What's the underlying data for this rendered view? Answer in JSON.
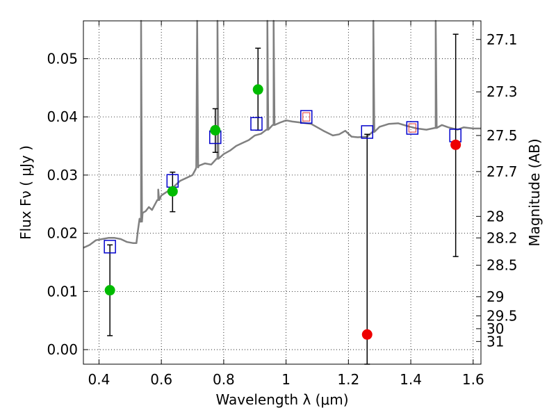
{
  "chart_data": {
    "type": "scatter",
    "title": "",
    "xlabel": "Wavelength  λ (μm)",
    "ylabel": "Flux  Fν  ( μJy )",
    "y2label": "Magnitude (AB)",
    "xlim": [
      0.35,
      1.625
    ],
    "ylim": [
      -0.0025,
      0.0565
    ],
    "grid": true,
    "x_ticks": [
      0.4,
      0.6,
      0.8,
      1.0,
      1.2,
      1.4,
      1.6
    ],
    "x_tick_labels": [
      "0.4",
      "0.6",
      "0.8",
      "1",
      "1.2",
      "1.4",
      "1.6"
    ],
    "y_ticks": [
      0.0,
      0.01,
      0.02,
      0.03,
      0.04,
      0.05
    ],
    "y_tick_labels": [
      "0.00",
      "0.01",
      "0.02",
      "0.03",
      "0.04",
      "0.05"
    ],
    "y2_ticks": [
      {
        "flux": 0.0533,
        "label": "27.1"
      },
      {
        "flux": 0.0443,
        "label": "27.3"
      },
      {
        "flux": 0.0368,
        "label": "27.5"
      },
      {
        "flux": 0.0306,
        "label": "27.7"
      },
      {
        "flux": 0.0229,
        "label": "28"
      },
      {
        "flux": 0.0192,
        "label": "28.2"
      },
      {
        "flux": 0.0145,
        "label": "28.5"
      },
      {
        "flux": 0.0091,
        "label": "29"
      },
      {
        "flux": 0.0058,
        "label": "29.5"
      },
      {
        "flux": 0.0036,
        "label": "30"
      },
      {
        "flux": 0.0014,
        "label": "31"
      }
    ],
    "detections": {
      "color": "#00bb00",
      "x": [
        0.435,
        0.636,
        0.773,
        0.91
      ],
      "y": [
        0.0102,
        0.0272,
        0.0377,
        0.0447
      ],
      "yerr_low": [
        0.0024,
        0.0237,
        0.0339,
        0.0377
      ],
      "yerr_high": [
        0.018,
        0.0305,
        0.0414,
        0.0518
      ]
    },
    "non_detections": {
      "color": "#ee0000",
      "x": [
        1.26,
        1.544
      ],
      "y": [
        0.0026,
        0.0352
      ],
      "yerr_low": [
        -0.0025,
        0.016
      ],
      "yerr_high": [
        0.037,
        0.0542
      ]
    },
    "model_boxes": {
      "color": "#0000cc",
      "x": [
        0.435,
        0.636,
        0.773,
        0.905,
        1.065,
        1.26,
        1.405,
        1.543
      ],
      "y": [
        0.0177,
        0.029,
        0.0365,
        0.0388,
        0.04,
        0.0374,
        0.0381,
        0.0368
      ]
    },
    "model_boxes_red_outline": {
      "color": "#dd3333",
      "x": [
        1.065,
        1.405
      ],
      "y": [
        0.04,
        0.0381
      ]
    },
    "sed_model": {
      "color": "#808080",
      "x": [
        0.35,
        0.37,
        0.39,
        0.41,
        0.43,
        0.45,
        0.47,
        0.49,
        0.51,
        0.52,
        0.525,
        0.53,
        0.535,
        0.54,
        0.55,
        0.56,
        0.57,
        0.58,
        0.59,
        0.6,
        0.62,
        0.64,
        0.66,
        0.68,
        0.7,
        0.71,
        0.72,
        0.74,
        0.76,
        0.78,
        0.8,
        0.82,
        0.84,
        0.86,
        0.88,
        0.9,
        0.92,
        0.94,
        0.96,
        0.98,
        1.0,
        1.02,
        1.05,
        1.08,
        1.1,
        1.12,
        1.15,
        1.17,
        1.19,
        1.21,
        1.23,
        1.26,
        1.28,
        1.3,
        1.33,
        1.36,
        1.39,
        1.42,
        1.45,
        1.48,
        1.5,
        1.52,
        1.55,
        1.57,
        1.6,
        1.625
      ],
      "y": [
        0.0175,
        0.018,
        0.0188,
        0.019,
        0.0192,
        0.0192,
        0.019,
        0.0185,
        0.0183,
        0.0183,
        0.0205,
        0.0225,
        0.022,
        0.0235,
        0.0238,
        0.0245,
        0.024,
        0.025,
        0.0257,
        0.0265,
        0.0272,
        0.028,
        0.029,
        0.0295,
        0.03,
        0.031,
        0.0316,
        0.032,
        0.0318,
        0.0328,
        0.0336,
        0.0342,
        0.035,
        0.0355,
        0.036,
        0.0368,
        0.0371,
        0.0378,
        0.0386,
        0.039,
        0.0394,
        0.0392,
        0.039,
        0.0388,
        0.0382,
        0.0376,
        0.0368,
        0.037,
        0.0376,
        0.0366,
        0.0365,
        0.0366,
        0.0374,
        0.0383,
        0.0388,
        0.0389,
        0.0384,
        0.038,
        0.0378,
        0.0381,
        0.0386,
        0.0382,
        0.0378,
        0.0382,
        0.038,
        0.038
      ]
    },
    "sed_emission_lines": [
      {
        "x": 0.535,
        "peak": 0.0565
      },
      {
        "x": 0.59,
        "peak": 0.0275
      },
      {
        "x": 0.715,
        "peak": 0.0565
      },
      {
        "x": 0.78,
        "peak": 0.0565
      },
      {
        "x": 0.94,
        "peak": 0.0565
      },
      {
        "x": 0.96,
        "peak": 0.0565
      },
      {
        "x": 1.28,
        "peak": 0.0565
      },
      {
        "x": 1.48,
        "peak": 0.0565
      }
    ]
  }
}
